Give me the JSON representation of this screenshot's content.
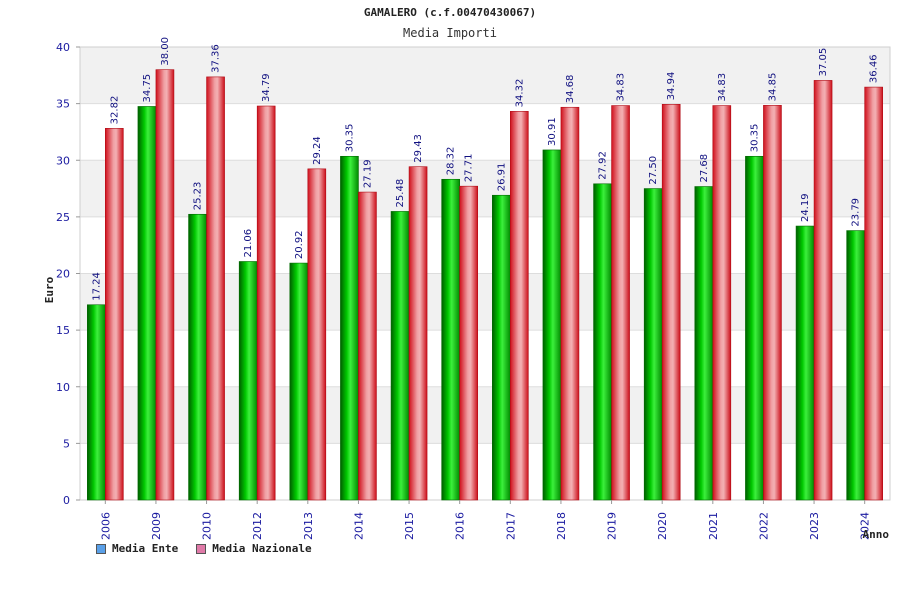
{
  "colors": {
    "ente": "#00b000",
    "nazionale": "#e0202a",
    "legend_ente": "#5aa0e8",
    "legend_nazionale": "#e07aa8",
    "band": "#f1f1f1",
    "grid": "#dddddd"
  },
  "chart_data": {
    "type": "bar",
    "title": "GAMALERO (c.f.00470430067)",
    "subtitle": "Media Importi",
    "xlabel": "Anno",
    "ylabel": "Euro",
    "ylim": [
      0,
      40
    ],
    "yticks": [
      0,
      5,
      10,
      15,
      20,
      25,
      30,
      35,
      40
    ],
    "grid": true,
    "legend_position": "bottom-left",
    "categories": [
      "2006",
      "2009",
      "2010",
      "2012",
      "2013",
      "2014",
      "2015",
      "2016",
      "2017",
      "2018",
      "2019",
      "2020",
      "2021",
      "2022",
      "2023",
      "2024"
    ],
    "series": [
      {
        "name": "Media Ente",
        "values": [
          17.24,
          34.75,
          25.23,
          21.06,
          20.92,
          30.35,
          25.48,
          28.32,
          26.91,
          30.91,
          27.92,
          27.5,
          27.68,
          30.35,
          24.19,
          23.79
        ],
        "labels": [
          "17.24",
          "34.75",
          "25.23",
          "21.06",
          "20.92",
          "30.35",
          "25.48",
          "28.32",
          "26.91",
          "30.91",
          "27.92",
          "27.50",
          "27.68",
          "30.35",
          "24.19",
          "23.79"
        ]
      },
      {
        "name": "Media Nazionale",
        "values": [
          32.82,
          38.0,
          37.36,
          34.79,
          29.24,
          27.19,
          29.43,
          27.71,
          34.32,
          34.68,
          34.83,
          34.94,
          34.83,
          34.85,
          37.05,
          36.46
        ],
        "labels": [
          "32.82",
          "38.00",
          "37.36",
          "34.79",
          "29.24",
          "27.19",
          "29.43",
          "27.71",
          "34.32",
          "34.68",
          "34.83",
          "34.94",
          "34.83",
          "34.85",
          "37.05",
          "36.46"
        ]
      }
    ]
  }
}
